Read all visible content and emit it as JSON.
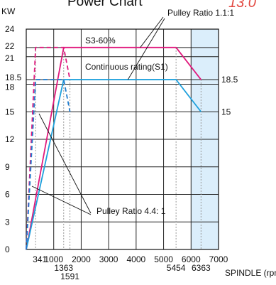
{
  "header": {
    "title": "Power Chart",
    "accent_text": "13.0"
  },
  "chart_data": {
    "type": "line",
    "ylabel": "KW",
    "xlabel": "SPINDLE (rpm)",
    "xlim": [
      0,
      7000
    ],
    "ylim": [
      0,
      24
    ],
    "grid": true,
    "x_ticks": [
      {
        "value": 1000,
        "label": "1000"
      },
      {
        "value": 2000,
        "label": "2000"
      },
      {
        "value": 3000,
        "label": "3000"
      },
      {
        "value": 4000,
        "label": "4000"
      },
      {
        "value": 5000,
        "label": "5000"
      },
      {
        "value": 6000,
        "label": "6000"
      },
      {
        "value": 7000,
        "label": "7000"
      }
    ],
    "x_ticks_extra": [
      {
        "value": 341,
        "label": "341",
        "row": 0
      },
      {
        "value": 1363,
        "label": "1363",
        "row": 1
      },
      {
        "value": 1591,
        "label": "1591",
        "row": 2
      },
      {
        "value": 5454,
        "label": "5454",
        "row": 1
      },
      {
        "value": 6363,
        "label": "6363",
        "row": 1
      }
    ],
    "y_ticks": [
      {
        "value": 0,
        "label": "0"
      },
      {
        "value": 3,
        "label": "3"
      },
      {
        "value": 6,
        "label": "6"
      },
      {
        "value": 9,
        "label": "9"
      },
      {
        "value": 12,
        "label": "12"
      },
      {
        "value": 15,
        "label": "15"
      },
      {
        "value": 18,
        "label": "18"
      },
      {
        "value": 18.5,
        "label": "18.5"
      },
      {
        "value": 21,
        "label": "21"
      },
      {
        "value": 22,
        "label": "22"
      },
      {
        "value": 24,
        "label": "24"
      }
    ],
    "shaded_region": {
      "x_from": 6000,
      "x_to": 7000,
      "color": "#dbeefb"
    },
    "series": [
      {
        "style": "solid",
        "color": "#e0197d",
        "points": [
          [
            0,
            0
          ],
          [
            1363,
            22
          ],
          [
            5454,
            22
          ],
          [
            6363,
            18.5
          ]
        ]
      },
      {
        "style": "solid",
        "color": "#1fa0dc",
        "points": [
          [
            0,
            0
          ],
          [
            1363,
            18.5
          ],
          [
            5454,
            18.5
          ],
          [
            6363,
            15
          ]
        ]
      },
      {
        "style": "dashed",
        "color": "#e0197d",
        "points": [
          [
            0,
            0
          ],
          [
            341,
            22
          ],
          [
            1363,
            22
          ],
          [
            1591,
            18.5
          ]
        ]
      },
      {
        "style": "dashed",
        "color": "#1f7ccf",
        "points": [
          [
            0,
            0
          ],
          [
            341,
            18.5
          ],
          [
            1363,
            18.5
          ],
          [
            1591,
            15
          ]
        ]
      }
    ],
    "annotations": [
      {
        "text": "S3-60%"
      },
      {
        "text": "Continuous rating(S1)"
      },
      {
        "text": "Pulley Ratio 1.1:1"
      },
      {
        "text": "Pulley Ratio 4.4: 1"
      }
    ],
    "right_labels": [
      {
        "value": 18.5,
        "label": "18.5"
      },
      {
        "value": 15,
        "label": "15"
      }
    ]
  }
}
